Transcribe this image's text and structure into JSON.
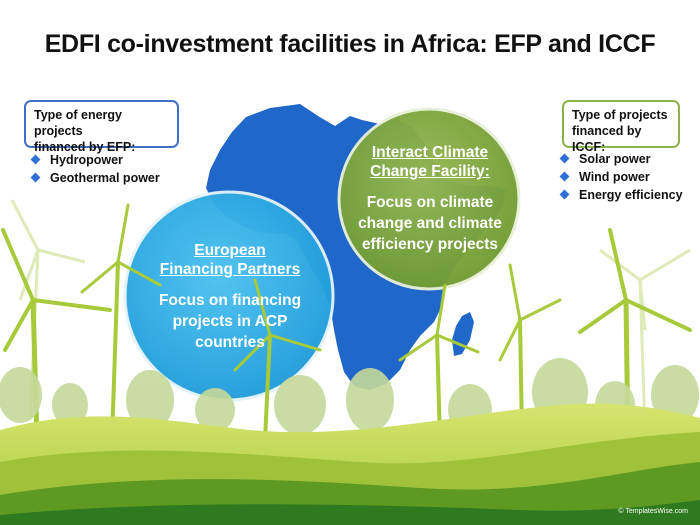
{
  "title": "EDFI co-investment facilities in Africa: EFP and ICCF",
  "efp_box": {
    "heading_line1": "Type of energy projects",
    "heading_line2": "financed by EFP:",
    "items": [
      "Hydropower",
      "Geothermal power"
    ]
  },
  "iccf_box": {
    "heading_line1": "Type of projects",
    "heading_line2": "financed by ICCF:",
    "items": [
      "Solar power",
      "Wind power",
      "Energy efficiency"
    ]
  },
  "efp_circle": {
    "name_line1": "European",
    "name_line2": "Financing Partners",
    "body_line1": "Focus on financing",
    "body_line2": "projects in ACP",
    "body_line3": "countries"
  },
  "iccf_circle": {
    "name_line1": "Interact Climate",
    "name_line2": "Change Facility:",
    "body_line1": "Focus on climate",
    "body_line2": "change and climate",
    "body_line3": "efficiency projects"
  },
  "footer": "© TemplatesWise.com",
  "colors": {
    "africa": "#1f67c9",
    "efp_circle": "#27a6e0",
    "iccf_circle": "#80a63d",
    "efp_border": "#3f6fc6",
    "iccf_border": "#8db44a",
    "bullet": "#2f6fd8",
    "hills_light": "#c8dc62",
    "hills_dark": "#5e9a22"
  }
}
